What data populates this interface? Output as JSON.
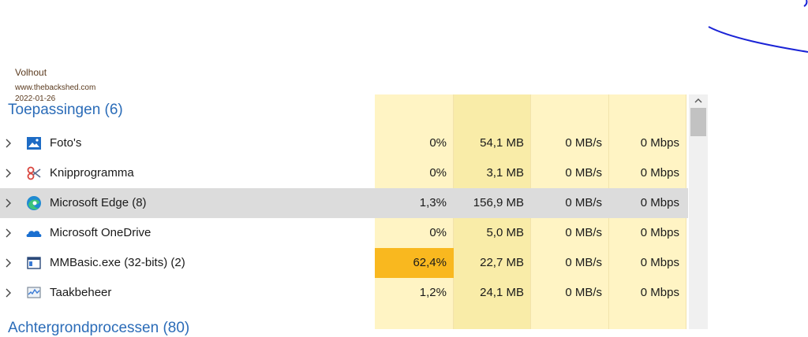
{
  "watermark": {
    "author": "Volhout",
    "site": "www.thebackshed.com",
    "date": "2022-01-26"
  },
  "section": {
    "apps_title": "Toepassingen (6)",
    "background_title": "Achtergrondprocessen (80)"
  },
  "rows": [
    {
      "name": "Foto's",
      "icon": "photos-icon",
      "cpu": "0%",
      "memory": "54,1 MB",
      "disk": "0 MB/s",
      "network": "0 Mbps"
    },
    {
      "name": "Knipprogramma",
      "icon": "snipping-tool-icon",
      "cpu": "0%",
      "memory": "3,1 MB",
      "disk": "0 MB/s",
      "network": "0 Mbps"
    },
    {
      "name": "Microsoft Edge (8)",
      "icon": "edge-icon",
      "cpu": "1,3%",
      "memory": "156,9 MB",
      "disk": "0 MB/s",
      "network": "0 Mbps"
    },
    {
      "name": "Microsoft OneDrive",
      "icon": "onedrive-icon",
      "cpu": "0%",
      "memory": "5,0 MB",
      "disk": "0 MB/s",
      "network": "0 Mbps"
    },
    {
      "name": "MMBasic.exe (32-bits) (2)",
      "icon": "app-window-icon",
      "cpu": "62,4%",
      "memory": "22,7 MB",
      "disk": "0 MB/s",
      "network": "0 Mbps"
    },
    {
      "name": "Taakbeheer",
      "icon": "task-manager-icon",
      "cpu": "1,2%",
      "memory": "24,1 MB",
      "disk": "0 MB/s",
      "network": "0 Mbps"
    }
  ],
  "colors": {
    "heat_light": "#fff4c4",
    "heat_medium": "#f9eca8",
    "heat_high": "#f9b81f",
    "selected_row": "#dcdcdc",
    "section_title": "#2b6cb8",
    "annotation_ink": "#1a23d6"
  }
}
